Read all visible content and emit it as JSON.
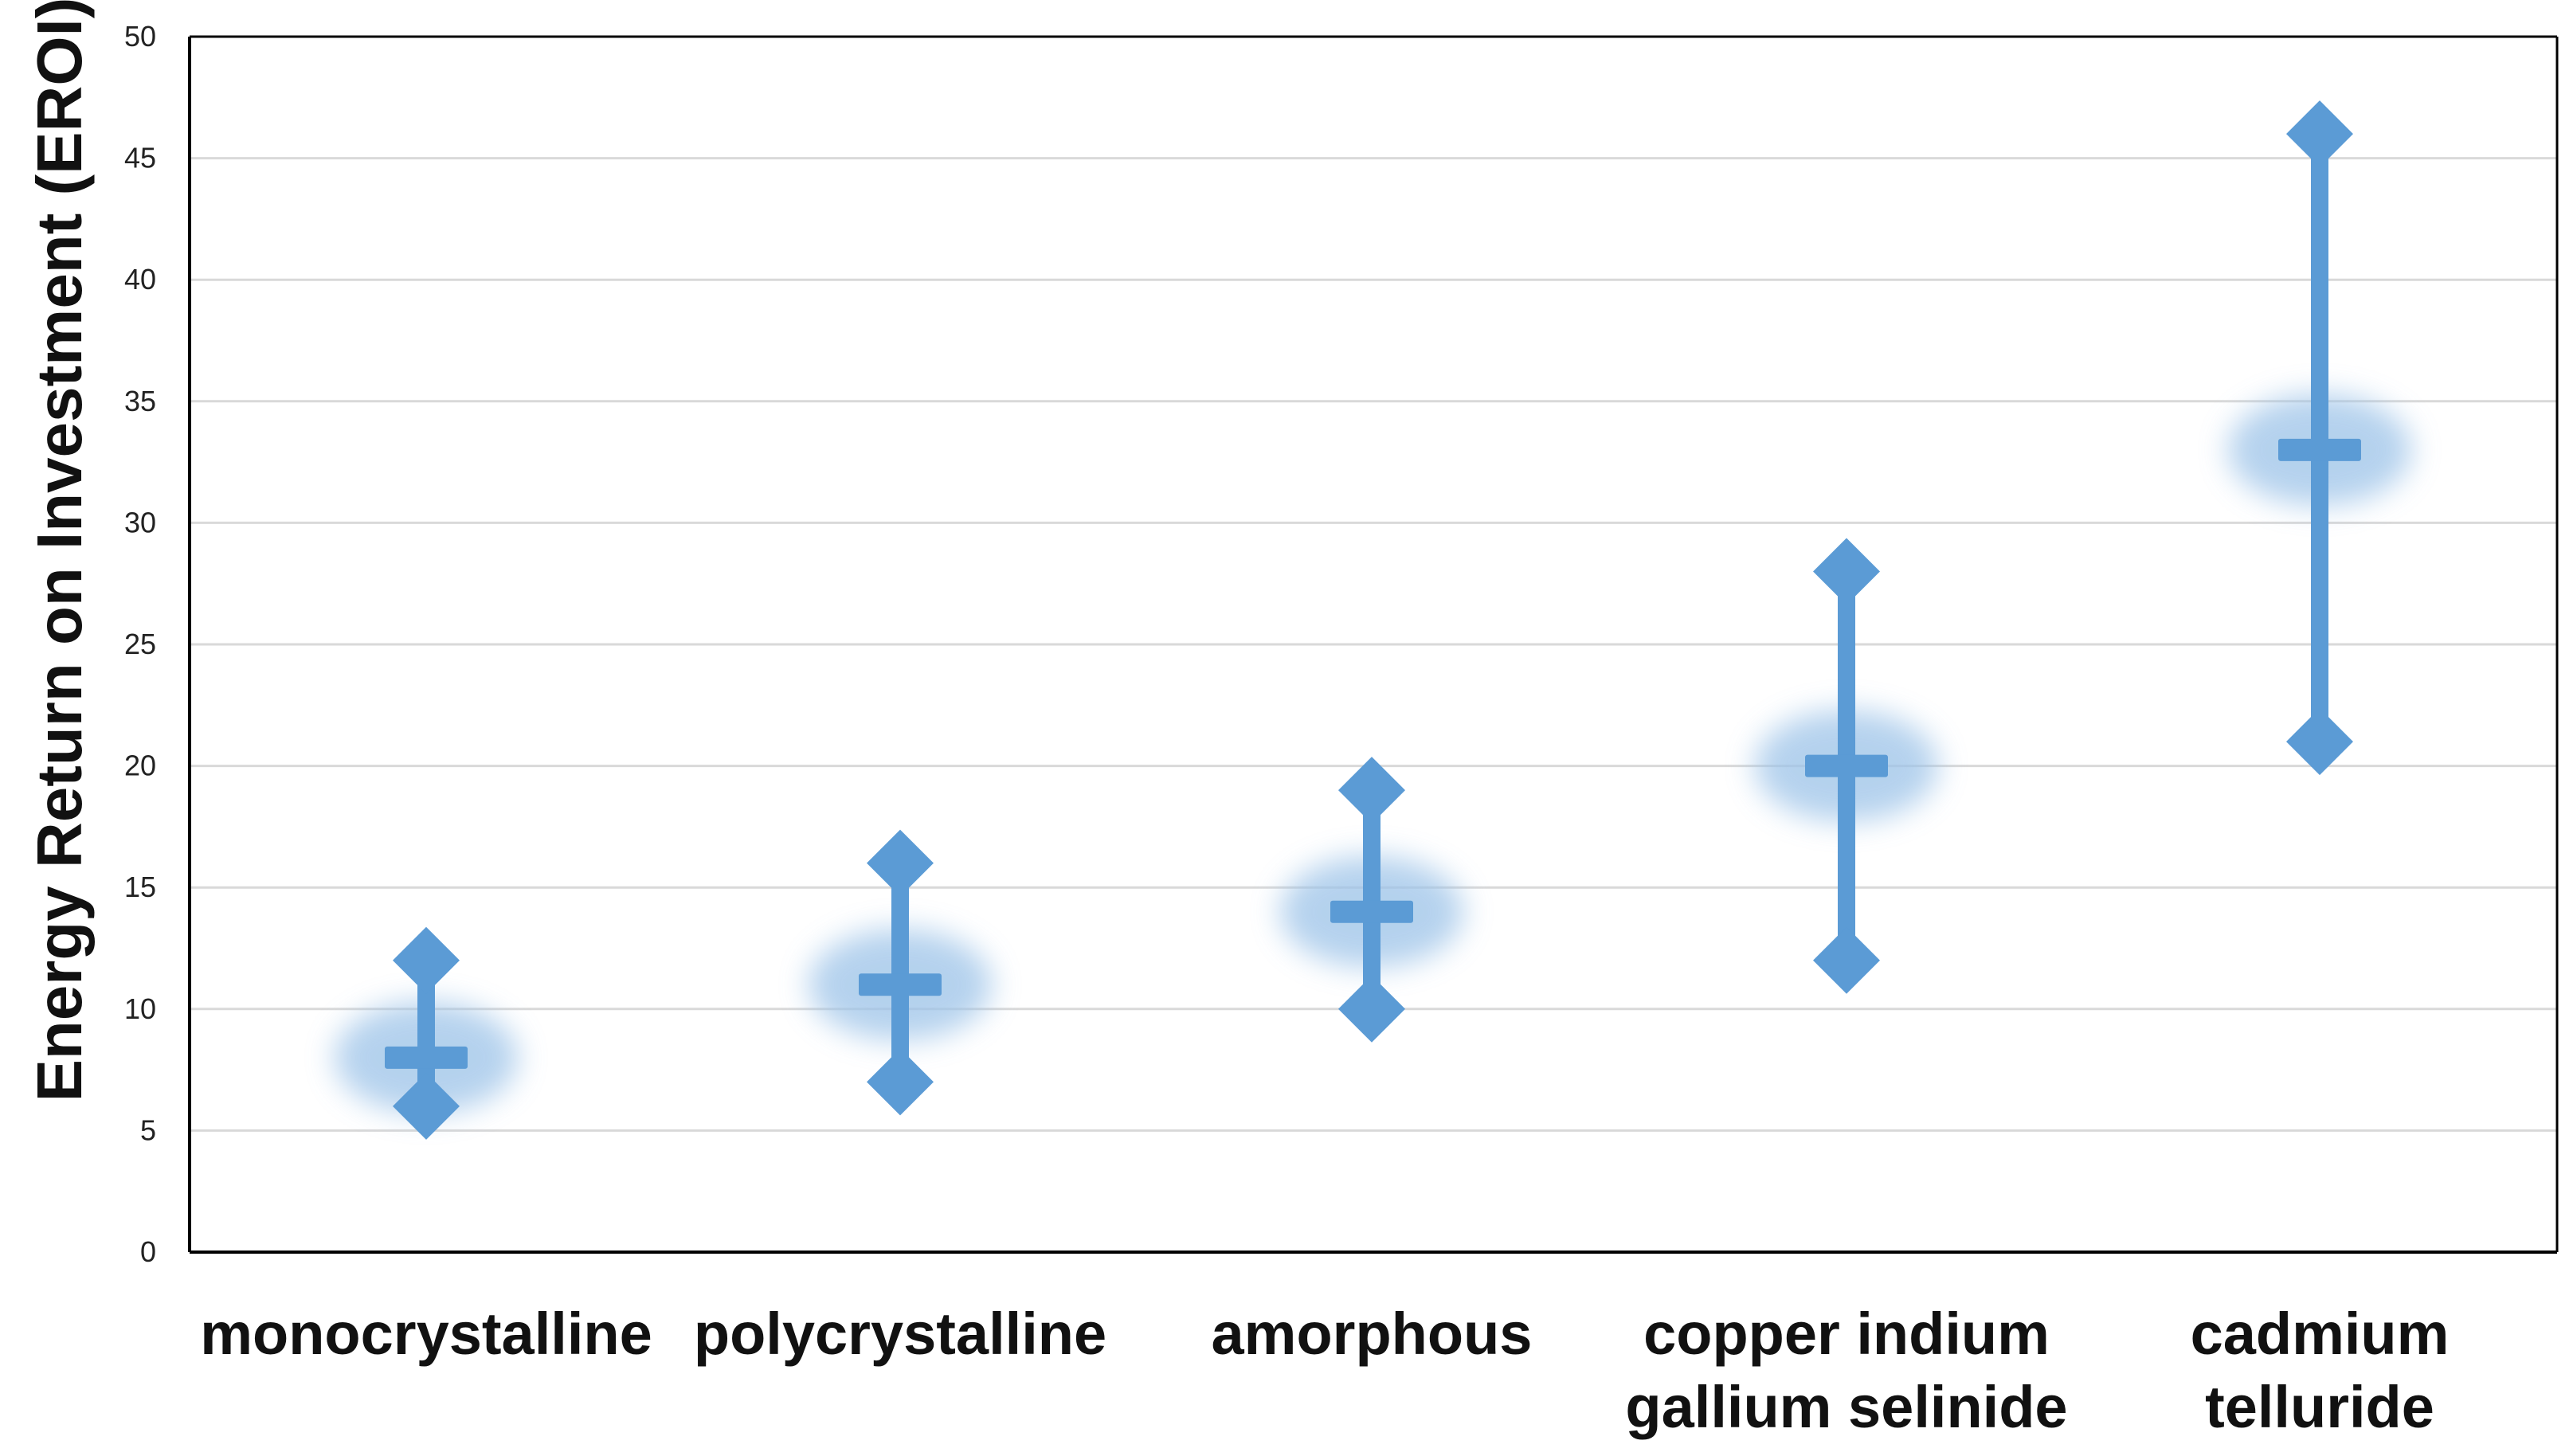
{
  "chart_data": {
    "type": "scatter",
    "title": "",
    "xlabel": "",
    "ylabel": "Energy Return on Investment (EROI)",
    "ylim": [
      0,
      50
    ],
    "yticks": [
      "0",
      "5",
      "10",
      "15",
      "20",
      "25",
      "30",
      "35",
      "40",
      "45",
      "50"
    ],
    "grid": true,
    "legend": "none",
    "categories": [
      [
        "monocrystalline"
      ],
      [
        "polycrystalline"
      ],
      [
        "amorphous"
      ],
      [
        "copper indium",
        "gallium selinide"
      ],
      [
        "cadmium",
        "telluride"
      ]
    ],
    "series": [
      {
        "name": "",
        "role": "max",
        "values": [
          12,
          16,
          19,
          28,
          46
        ]
      },
      {
        "name": "",
        "role": "mid",
        "values": [
          8,
          11,
          14,
          20,
          33
        ]
      },
      {
        "name": "",
        "role": "min",
        "values": [
          6,
          7,
          10,
          12,
          21
        ]
      }
    ],
    "colors": {
      "marker": "#5b9bd5",
      "glow": "#9cc3e8",
      "grid": "#d9d9d9",
      "axis": "#000000"
    }
  }
}
